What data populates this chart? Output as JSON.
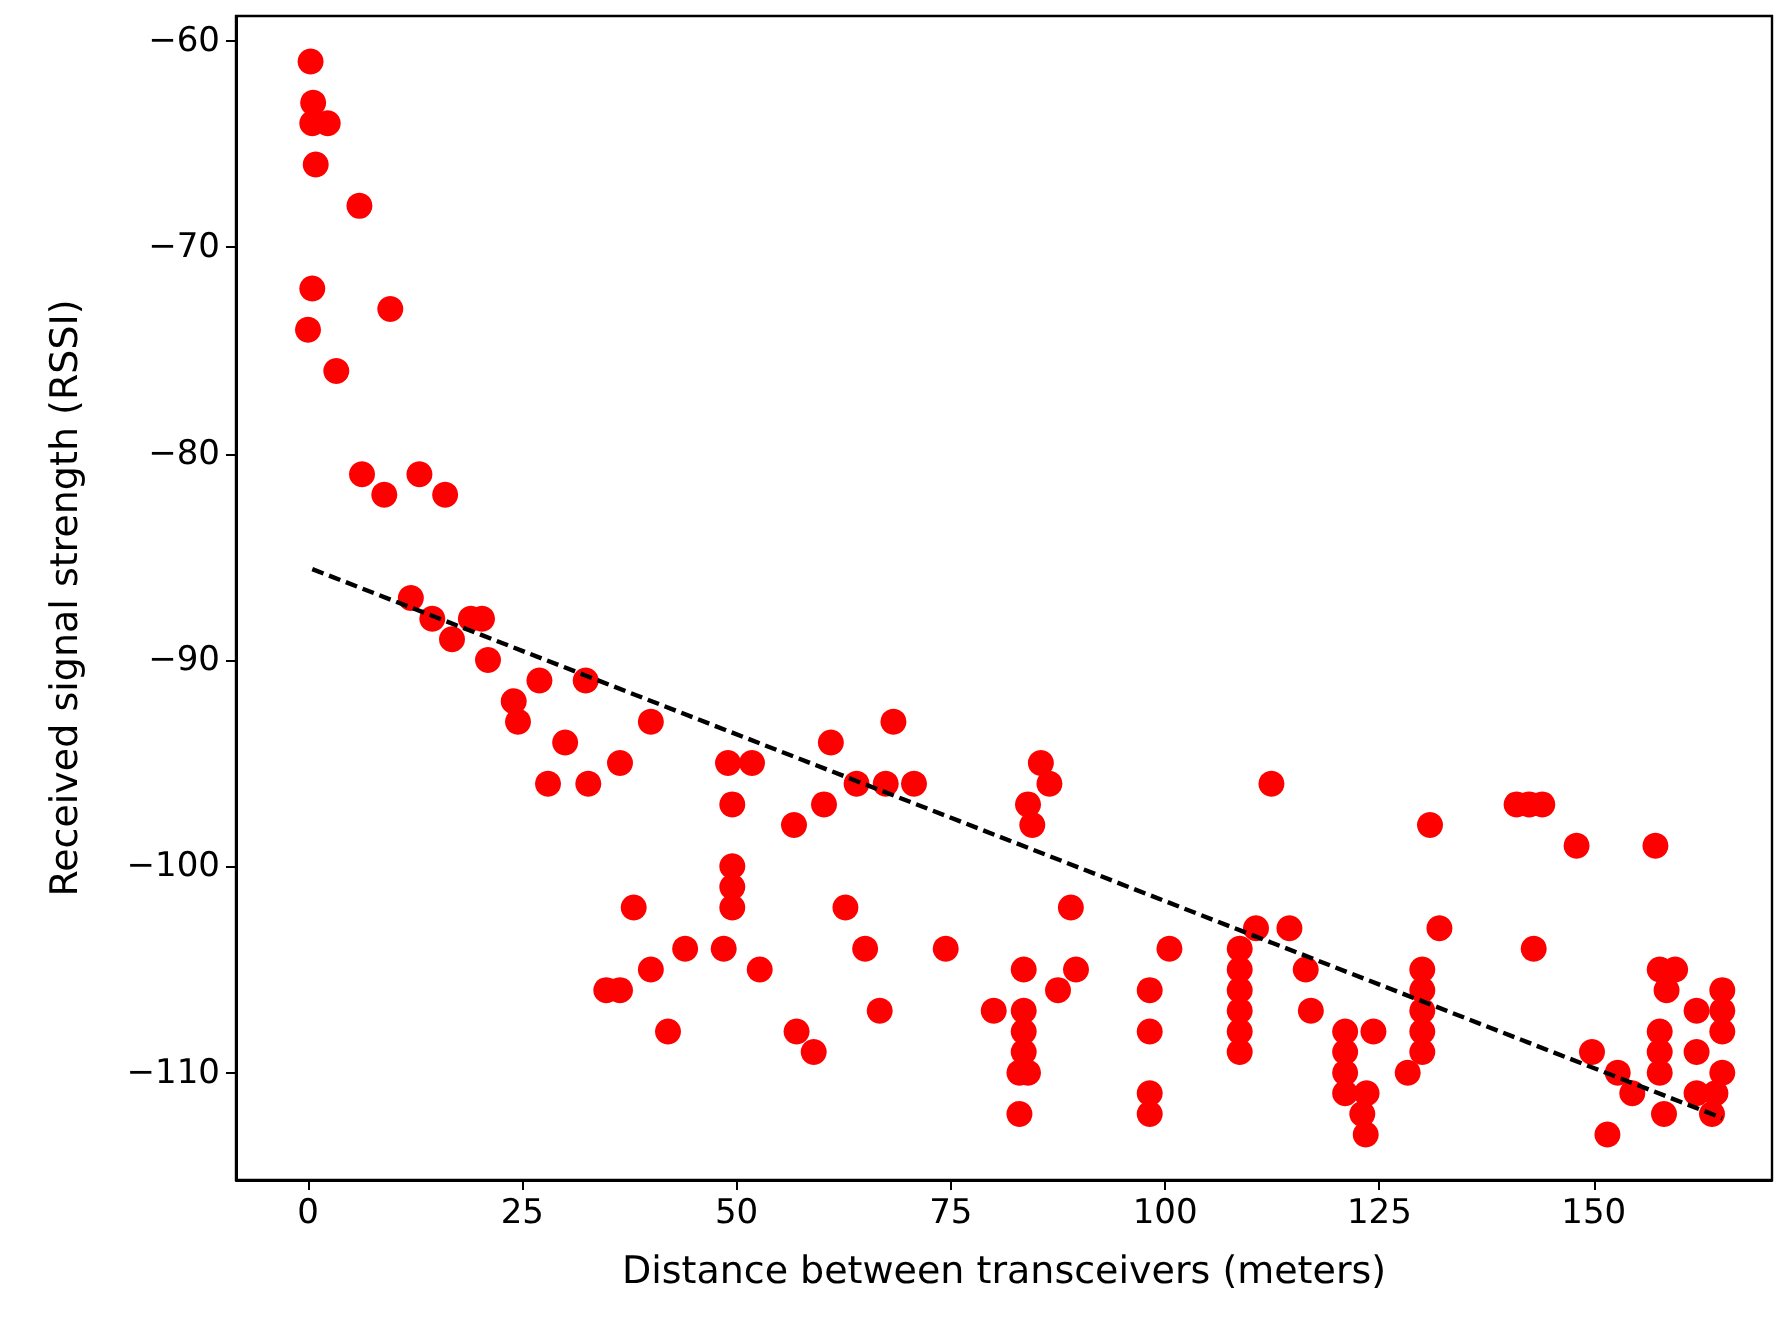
{
  "chart_data": {
    "type": "scatter",
    "xlabel": "Distance between transceivers (meters)",
    "ylabel": "Received signal strength (RSSI)",
    "xlim": [
      -8.4,
      170.8
    ],
    "ylim": [
      -115.2,
      -58.8
    ],
    "xticks": [
      0,
      25,
      50,
      75,
      100,
      125,
      150
    ],
    "yticks": [
      {
        "value": -110,
        "label": "−110"
      },
      {
        "value": -100,
        "label": "−100"
      },
      {
        "value": -90,
        "label": "−90"
      },
      {
        "value": -80,
        "label": "−80"
      },
      {
        "value": -70,
        "label": "−70"
      },
      {
        "value": -60,
        "label": "−60"
      }
    ],
    "grid": false,
    "marker": "circle",
    "series": [
      {
        "color": "#ff0000",
        "x": [
          0.3,
          0.6,
          0.5,
          2.3,
          0.9,
          6,
          0.5,
          9.6,
          0,
          3.3,
          6.3,
          13,
          8.9,
          16,
          12,
          14.5,
          19,
          20.3,
          16.8,
          21,
          24,
          24.5,
          27,
          30,
          28,
          32.7,
          36.4,
          32.4,
          40,
          34.8,
          36.4,
          38,
          40,
          42,
          44,
          49,
          51.8,
          49.5,
          49.5,
          49.5,
          49.5,
          48.5,
          52.7,
          56.7,
          57,
          59,
          60.2,
          61,
          62.7,
          64,
          65,
          66.7,
          67.4,
          68.3,
          70.7,
          74.4,
          80,
          85.5,
          86.5,
          84,
          84.5,
          83.5,
          83.5,
          83.5,
          83.5,
          83,
          84,
          83,
          89,
          89.6,
          87.5,
          98.2,
          98.2,
          98.2,
          98.2,
          100.5,
          108.7,
          108.7,
          108.7,
          108.7,
          108.7,
          108.7,
          110.6,
          114.5,
          112.4,
          116.4,
          117,
          121,
          121,
          121,
          121,
          124.3,
          123.5,
          123,
          123.4,
          132,
          130,
          130,
          130,
          130,
          130,
          128.3,
          130.9,
          141,
          142.5,
          144,
          148,
          157.2,
          143,
          149.8,
          152.8,
          154.5,
          151.6,
          157.7,
          159.5,
          158.5,
          157.7,
          157.7,
          157.7,
          158.2,
          162,
          162,
          162,
          165,
          165,
          165,
          165,
          164.2,
          163.8
        ],
        "values": [
          -61,
          -63,
          -64,
          -64,
          -66,
          -68,
          -72,
          -73,
          -74,
          -76,
          -81,
          -81,
          -82,
          -82,
          -87,
          -88,
          -88,
          -88,
          -89,
          -90,
          -92,
          -93,
          -91,
          -94,
          -96,
          -96,
          -95,
          -91,
          -93,
          -106,
          -106,
          -102,
          -105,
          -108,
          -104,
          -95,
          -95,
          -97,
          -100,
          -101,
          -102,
          -104,
          -105,
          -98,
          -108,
          -109,
          -97,
          -94,
          -102,
          -96,
          -104,
          -107,
          -96,
          -93,
          -96,
          -104,
          -107,
          -95,
          -96,
          -97,
          -98,
          -105,
          -107,
          -108,
          -109,
          -110,
          -110,
          -112,
          -102,
          -105,
          -106,
          -106,
          -108,
          -111,
          -112,
          -104,
          -104,
          -105,
          -106,
          -107,
          -108,
          -109,
          -103,
          -103,
          -96,
          -105,
          -107,
          -108,
          -109,
          -110,
          -111,
          -108,
          -111,
          -112,
          -113,
          -103,
          -105,
          -106,
          -107,
          -108,
          -109,
          -110,
          -98,
          -97,
          -97,
          -97,
          -99,
          -99,
          -104,
          -109,
          -110,
          -111,
          -113,
          -105,
          -105,
          -106,
          -108,
          -109,
          -110,
          -112,
          -107,
          -109,
          -111,
          -106,
          -107,
          -108,
          -110,
          -111,
          -112
        ]
      },
      {
        "type": "line",
        "color": "#000000",
        "line_style": "dashed",
        "marker": "none",
        "x": [
          0.5,
          165
        ],
        "values": [
          -85.6,
          -112.2
        ]
      }
    ]
  }
}
